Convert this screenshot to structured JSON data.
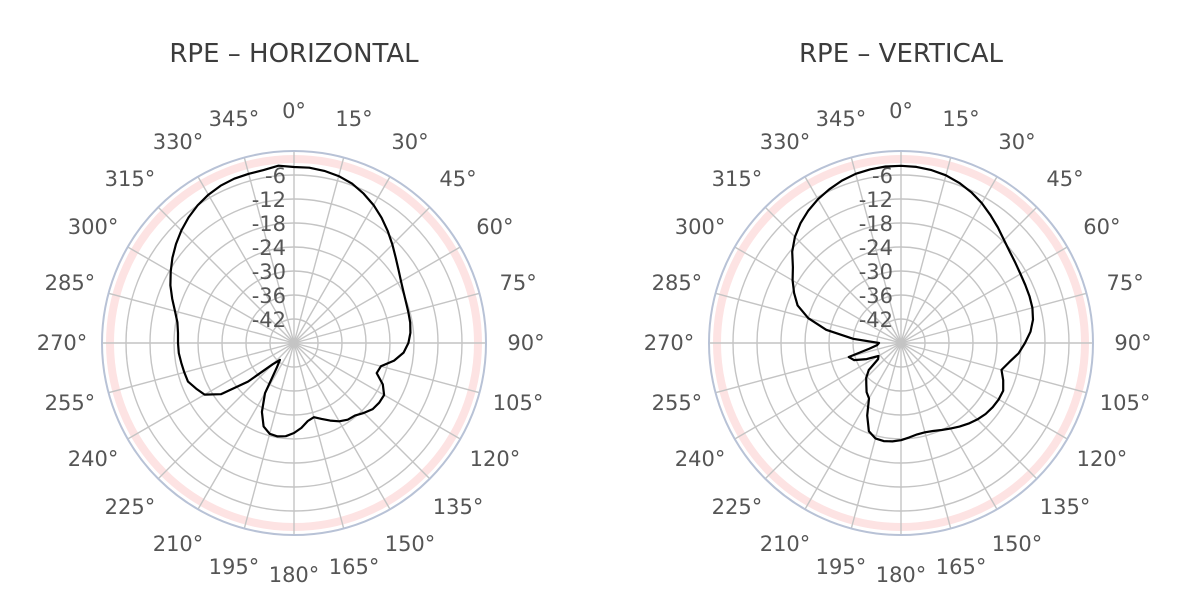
{
  "colors": {
    "trace": "#000000",
    "grid": "#c4c4c4",
    "band": "#fde3e3",
    "outer_ring": "#b8c2d6",
    "text": "#555555"
  },
  "chart_data": [
    {
      "type": "polar-line",
      "title": "RPE – HORIZONTAL",
      "angle_unit": "deg",
      "angle_direction": "clockwise",
      "zero_location": "top",
      "angle_tick_labels": [
        "0°",
        "15°",
        "30°",
        "45°",
        "60°",
        "75°",
        "90°",
        "105°",
        "120°",
        "135°",
        "150°",
        "165°",
        "180°",
        "195°",
        "210°",
        "225°",
        "240°",
        "255°",
        "270°",
        "285°",
        "300°",
        "315°",
        "330°",
        "345°"
      ],
      "radial_range": [
        -48,
        0
      ],
      "radial_tick_labels": [
        "-6",
        "-12",
        "-18",
        "-24",
        "-30",
        "-36",
        "-42"
      ],
      "band_range": [
        -3,
        -1
      ],
      "grid": true,
      "series": [
        {
          "angles": [
            0,
            5,
            10,
            15,
            20,
            25,
            30,
            35,
            40,
            45,
            50,
            55,
            60,
            65,
            70,
            75,
            80,
            85,
            90,
            95,
            100,
            105,
            110,
            115,
            120,
            125,
            130,
            135,
            140,
            145,
            150,
            155,
            160,
            165,
            170,
            175,
            180,
            185,
            190,
            195,
            200,
            205,
            210,
            215,
            220,
            225,
            230,
            235,
            240,
            245,
            250,
            255,
            260,
            265,
            270,
            275,
            280,
            285,
            290,
            295,
            300,
            305,
            310,
            315,
            320,
            325,
            330,
            335,
            340,
            345,
            350,
            355,
            360
          ],
          "values": [
            -4,
            -4,
            -4.3,
            -4.8,
            -5.6,
            -6.8,
            -8.2,
            -9.8,
            -11.5,
            -13.2,
            -14.8,
            -16.1,
            -17.1,
            -17.8,
            -18.2,
            -18.4,
            -18.5,
            -18.8,
            -19.4,
            -20.5,
            -22.6,
            -25.5,
            -26,
            -23.5,
            -22,
            -22,
            -22.3,
            -23.3,
            -24.3,
            -24.6,
            -25.4,
            -26.6,
            -27.8,
            -28.8,
            -28.2,
            -26.7,
            -25.5,
            -24.6,
            -24.3,
            -24.5,
            -25.8,
            -29,
            -33.5,
            -40.5,
            -42.5,
            -40.5,
            -33,
            -25.7,
            -22.2,
            -21,
            -19.8,
            -19.6,
            -19.4,
            -19.1,
            -19,
            -18.9,
            -18.4,
            -17.2,
            -15.6,
            -13.9,
            -12.4,
            -10.9,
            -9.5,
            -8.2,
            -7,
            -6,
            -5.2,
            -4.6,
            -4.3,
            -4.2,
            -4.1,
            -3.5,
            -4
          ]
        }
      ]
    },
    {
      "type": "polar-line",
      "title": "RPE – VERTICAL",
      "angle_unit": "deg",
      "angle_direction": "clockwise",
      "zero_location": "top",
      "angle_tick_labels": [
        "0°",
        "15°",
        "30°",
        "45°",
        "60°",
        "75°",
        "90°",
        "105°",
        "120°",
        "135°",
        "150°",
        "165°",
        "180°",
        "195°",
        "210°",
        "225°",
        "240°",
        "255°",
        "270°",
        "285°",
        "300°",
        "315°",
        "330°",
        "345°"
      ],
      "radial_range": [
        -48,
        0
      ],
      "radial_tick_labels": [
        "-6",
        "-12",
        "-18",
        "-24",
        "-30",
        "-36",
        "-42"
      ],
      "band_range": [
        -3,
        -1
      ],
      "grid": true,
      "series": [
        {
          "angles": [
            0,
            5,
            10,
            15,
            20,
            25,
            30,
            35,
            40,
            45,
            50,
            55,
            60,
            65,
            70,
            75,
            80,
            85,
            90,
            95,
            100,
            105,
            110,
            115,
            120,
            125,
            130,
            135,
            140,
            145,
            150,
            155,
            160,
            165,
            170,
            175,
            180,
            185,
            190,
            195,
            200,
            205,
            210,
            215,
            220,
            225,
            230,
            235,
            240,
            245,
            250,
            255,
            260,
            265,
            270,
            275,
            280,
            285,
            290,
            295,
            300,
            305,
            310,
            315,
            320,
            325,
            330,
            335,
            340,
            345,
            350,
            355,
            360
          ],
          "values": [
            -3.7,
            -3.8,
            -4.1,
            -4.6,
            -5.4,
            -6.4,
            -7.6,
            -9,
            -10.3,
            -11.6,
            -12.5,
            -13.1,
            -13.5,
            -13.7,
            -13.8,
            -14,
            -14.5,
            -15.5,
            -17,
            -18.5,
            -20.5,
            -22,
            -20.8,
            -19.8,
            -19.8,
            -20,
            -20.4,
            -21,
            -21.7,
            -22.5,
            -23.3,
            -24,
            -24.6,
            -24.9,
            -24.8,
            -24.3,
            -23.7,
            -23.3,
            -23.1,
            -23.3,
            -24.5,
            -28,
            -32,
            -33,
            -34.5,
            -35.7,
            -37.5,
            -41,
            -41.5,
            -38.5,
            -35.5,
            -34.5,
            -40,
            -42,
            -42.5,
            -36,
            -29,
            -24,
            -20.5,
            -18.5,
            -16.7,
            -15,
            -12.5,
            -10.5,
            -8.9,
            -7.6,
            -6.5,
            -5.6,
            -4.8,
            -4.2,
            -3.9,
            -3.7,
            -3.7
          ]
        }
      ]
    }
  ]
}
